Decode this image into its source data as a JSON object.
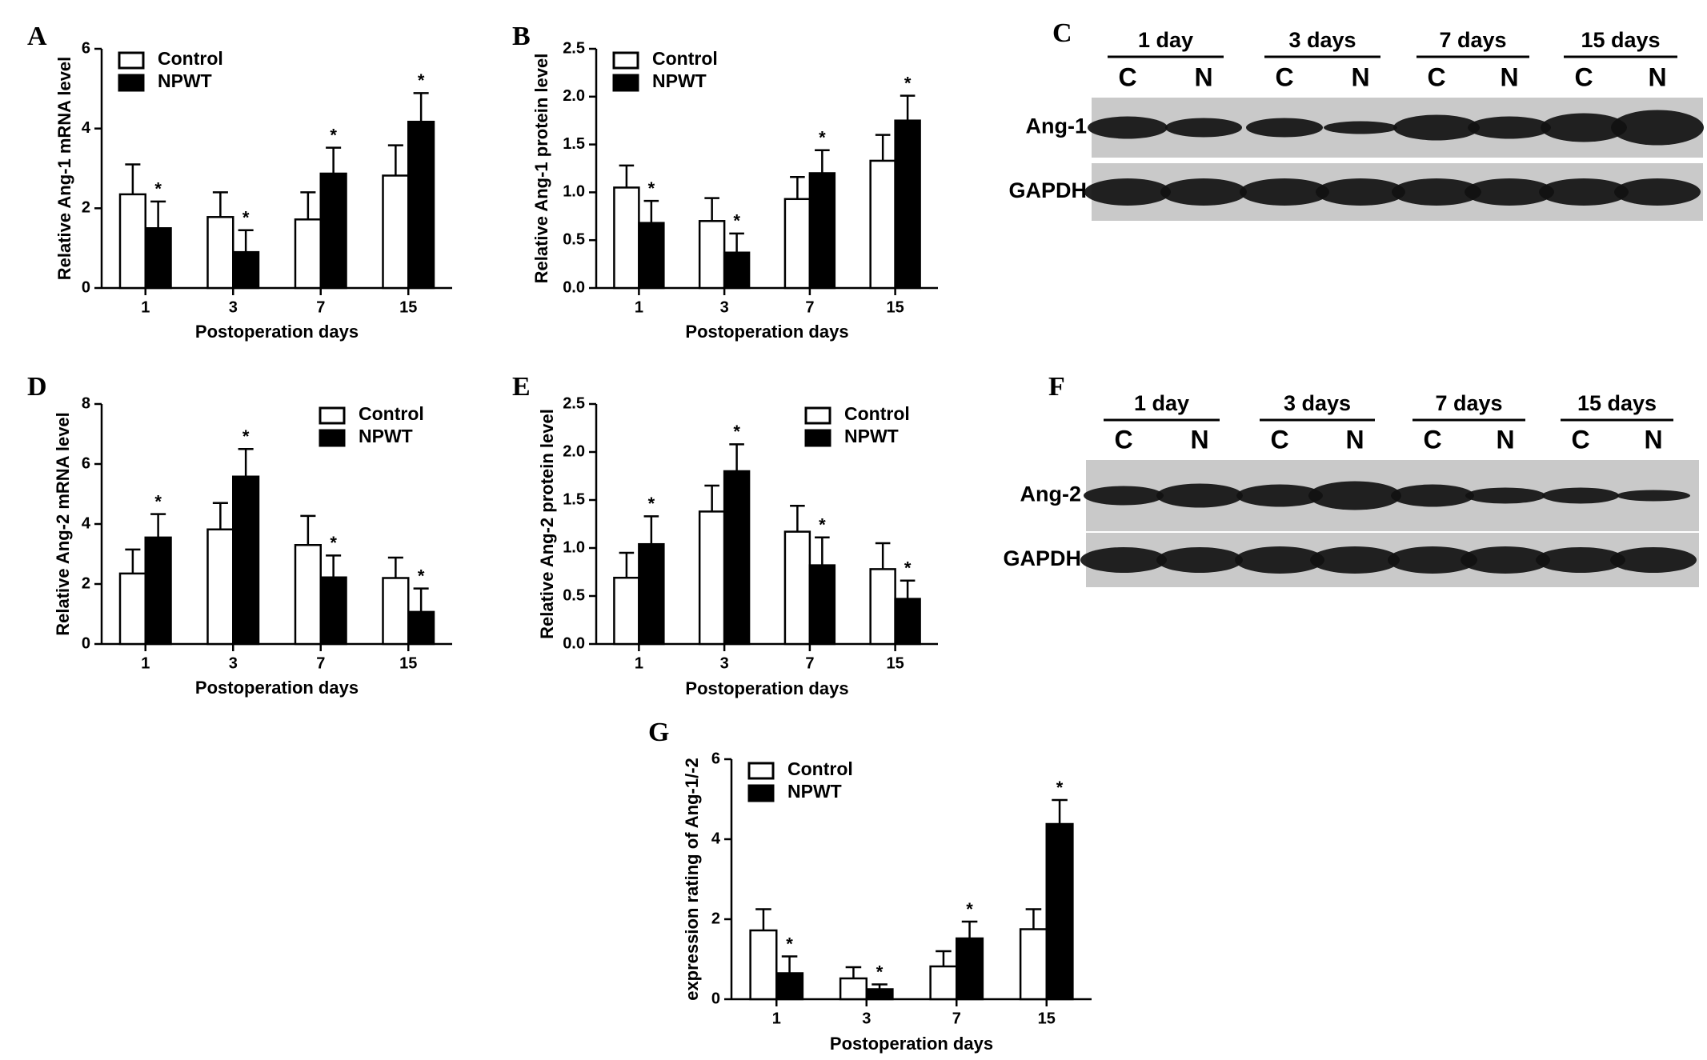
{
  "chart_data": [
    {
      "type": "bar",
      "panel": "A",
      "ylabel": "Relative Ang-1 mRNA level",
      "xlabel": "Postoperation days",
      "categories": [
        "1",
        "3",
        "7",
        "15"
      ],
      "ylim": [
        0,
        6
      ],
      "yticks": [
        0,
        2,
        4,
        6
      ],
      "legend": "upper left",
      "series": [
        {
          "name": "Control",
          "color": "#ffffff",
          "values": [
            2.35,
            1.78,
            1.72,
            2.82
          ],
          "errors": [
            0.75,
            0.62,
            0.68,
            0.76
          ]
        },
        {
          "name": "NPWT",
          "color": "#000000",
          "values": [
            1.5,
            0.9,
            2.87,
            4.17
          ],
          "errors": [
            0.67,
            0.55,
            0.65,
            0.72
          ],
          "significance": [
            "*",
            "*",
            "*",
            "*"
          ]
        }
      ]
    },
    {
      "type": "bar",
      "panel": "B",
      "ylabel": "Relative Ang-1 protein level",
      "xlabel": "Postoperation days",
      "categories": [
        "1",
        "3",
        "7",
        "15"
      ],
      "ylim": [
        0,
        2.5
      ],
      "yticks": [
        {
          "value": 0,
          "label": "0.0"
        },
        0.5,
        {
          "value": 1,
          "label": "1.0"
        },
        1.5,
        {
          "value": 2,
          "label": "2.0"
        },
        2.5
      ],
      "legend": "upper left",
      "series": [
        {
          "name": "Control",
          "color": "#ffffff",
          "values": [
            1.05,
            0.7,
            0.93,
            1.33
          ],
          "errors": [
            0.23,
            0.24,
            0.23,
            0.27
          ]
        },
        {
          "name": "NPWT",
          "color": "#000000",
          "values": [
            0.68,
            0.37,
            1.2,
            1.75
          ],
          "errors": [
            0.23,
            0.2,
            0.24,
            0.26
          ],
          "significance": [
            "*",
            "*",
            "*",
            "*"
          ]
        }
      ]
    },
    {
      "type": "bar",
      "panel": "D",
      "ylabel": "Relative Ang-2 mRNA level",
      "xlabel": "Postoperation days",
      "categories": [
        "1",
        "3",
        "7",
        "15"
      ],
      "ylim": [
        0,
        8
      ],
      "yticks": [
        0,
        2,
        4,
        6,
        8
      ],
      "legend": "upper right",
      "series": [
        {
          "name": "Control",
          "color": "#ffffff",
          "values": [
            2.35,
            3.82,
            3.3,
            2.2
          ],
          "errors": [
            0.8,
            0.88,
            0.97,
            0.68
          ]
        },
        {
          "name": "NPWT",
          "color": "#000000",
          "values": [
            3.55,
            5.58,
            2.22,
            1.07
          ],
          "errors": [
            0.78,
            0.92,
            0.73,
            0.78
          ],
          "significance": [
            "*",
            "*",
            "*",
            "*"
          ]
        }
      ]
    },
    {
      "type": "bar",
      "panel": "E",
      "ylabel": "Relative Ang-2 protein level",
      "xlabel": "Postoperation days",
      "categories": [
        "1",
        "3",
        "7",
        "15"
      ],
      "ylim": [
        0,
        2.5
      ],
      "yticks": [
        {
          "value": 0,
          "label": "0.0"
        },
        0.5,
        {
          "value": 1,
          "label": "1.0"
        },
        1.5,
        {
          "value": 2,
          "label": "2.0"
        },
        2.5
      ],
      "legend": "upper right",
      "series": [
        {
          "name": "Control",
          "color": "#ffffff",
          "values": [
            0.69,
            1.38,
            1.17,
            0.78
          ],
          "errors": [
            0.26,
            0.27,
            0.27,
            0.27
          ]
        },
        {
          "name": "NPWT",
          "color": "#000000",
          "values": [
            1.04,
            1.8,
            0.82,
            0.47
          ],
          "errors": [
            0.29,
            0.28,
            0.29,
            0.19
          ],
          "significance": [
            "*",
            "*",
            "*",
            "*"
          ]
        }
      ]
    },
    {
      "type": "bar",
      "panel": "G",
      "ylabel": "expression rating of Ang-1/-2",
      "xlabel": "Postoperation days",
      "categories": [
        "1",
        "3",
        "7",
        "15"
      ],
      "ylim": [
        0,
        6
      ],
      "yticks": [
        0,
        2,
        4,
        6
      ],
      "legend": "upper left",
      "series": [
        {
          "name": "Control",
          "color": "#ffffff",
          "values": [
            1.72,
            0.52,
            0.82,
            1.75
          ],
          "errors": [
            0.53,
            0.28,
            0.38,
            0.5
          ]
        },
        {
          "name": "NPWT",
          "color": "#000000",
          "values": [
            0.65,
            0.25,
            1.52,
            4.38
          ],
          "errors": [
            0.42,
            0.12,
            0.42,
            0.6
          ],
          "significance": [
            "*",
            "*",
            "*",
            "*"
          ]
        }
      ]
    }
  ],
  "blots": [
    {
      "panel": "C",
      "groups": [
        "1 day",
        "3 days",
        "7 days",
        "15 days"
      ],
      "lanes": [
        "C",
        "N",
        "C",
        "N",
        "C",
        "N",
        "C",
        "N"
      ],
      "rows": [
        "Ang-1",
        "GAPDH"
      ]
    },
    {
      "panel": "F",
      "groups": [
        "1 day",
        "3 days",
        "7 days",
        "15 days"
      ],
      "lanes": [
        "C",
        "N",
        "C",
        "N",
        "C",
        "N",
        "C",
        "N"
      ],
      "rows": [
        "Ang-2",
        "GAPDH"
      ]
    }
  ]
}
